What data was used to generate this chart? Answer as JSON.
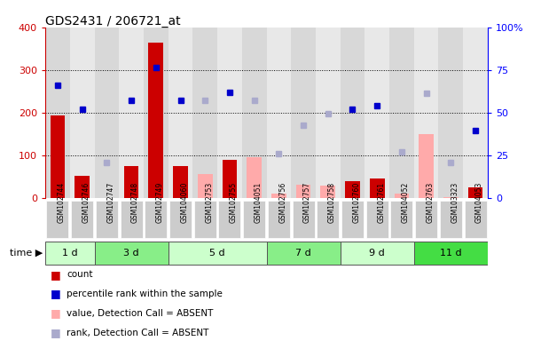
{
  "title": "GDS2431 / 206721_at",
  "samples": [
    "GSM102744",
    "GSM102746",
    "GSM102747",
    "GSM102748",
    "GSM102749",
    "GSM104060",
    "GSM102753",
    "GSM102755",
    "GSM104051",
    "GSM102756",
    "GSM102757",
    "GSM102758",
    "GSM102760",
    "GSM102761",
    "GSM104052",
    "GSM102763",
    "GSM103323",
    "GSM104053"
  ],
  "time_groups": [
    {
      "label": "1 d",
      "start": 0,
      "end": 2,
      "color": "#ccffcc"
    },
    {
      "label": "3 d",
      "start": 2,
      "end": 5,
      "color": "#88ee88"
    },
    {
      "label": "5 d",
      "start": 5,
      "end": 9,
      "color": "#ccffcc"
    },
    {
      "label": "7 d",
      "start": 9,
      "end": 12,
      "color": "#88ee88"
    },
    {
      "label": "9 d",
      "start": 12,
      "end": 15,
      "color": "#ccffcc"
    },
    {
      "label": "11 d",
      "start": 15,
      "end": 18,
      "color": "#44dd44"
    }
  ],
  "count_values": [
    193,
    52,
    null,
    75,
    365,
    75,
    null,
    90,
    null,
    null,
    null,
    null,
    38,
    46,
    null,
    null,
    null,
    25
  ],
  "count_absent_values": [
    null,
    null,
    null,
    null,
    null,
    null,
    55,
    null,
    95,
    10,
    30,
    28,
    null,
    null,
    10,
    150,
    2,
    null
  ],
  "rank_present": [
    265,
    207,
    null,
    228,
    305,
    228,
    null,
    248,
    null,
    null,
    null,
    null,
    208,
    217,
    null,
    null,
    null,
    158
  ],
  "rank_absent": [
    null,
    null,
    83,
    null,
    null,
    null,
    228,
    null,
    228,
    103,
    170,
    197,
    null,
    null,
    108,
    246,
    82,
    null
  ],
  "ylim_left": [
    0,
    400
  ],
  "ylim_right": [
    0,
    100
  ],
  "yticks_left": [
    0,
    100,
    200,
    300,
    400
  ],
  "yticks_right": [
    0,
    25,
    50,
    75,
    100
  ],
  "ytick_right_labels": [
    "0",
    "25",
    "50",
    "75",
    "100%"
  ],
  "color_count": "#cc0000",
  "color_rank_present": "#0000cc",
  "color_count_absent": "#ffaaaa",
  "color_rank_absent": "#aaaacc",
  "col_bg_even": "#d8d8d8",
  "col_bg_odd": "#e8e8e8"
}
